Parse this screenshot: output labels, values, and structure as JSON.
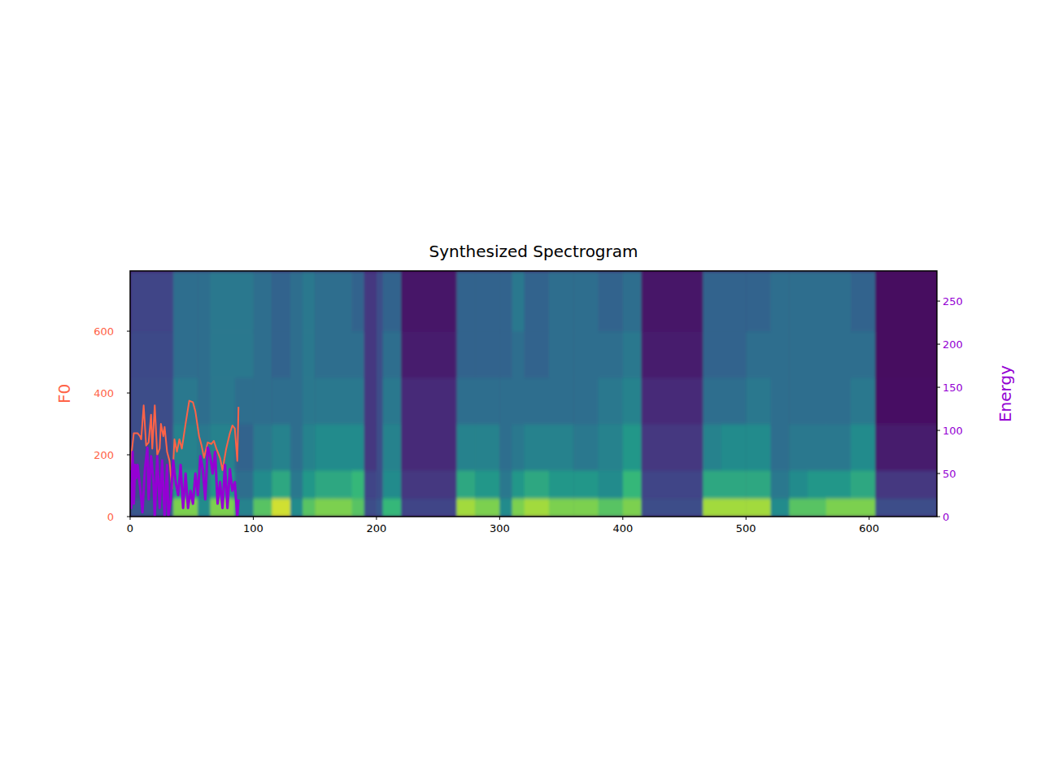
{
  "chart_data": {
    "type": "line",
    "title": "Synthesized Spectrogram",
    "ylabel": "F0",
    "y2label": "Energy",
    "xlim": [
      0,
      655
    ],
    "xticks": [
      0,
      100,
      200,
      300,
      400,
      500,
      600
    ],
    "ylim": [
      0,
      795
    ],
    "yticks": [
      0,
      200,
      400,
      600
    ],
    "y2lim": [
      0,
      285
    ],
    "y2ticks": [
      0,
      50,
      100,
      150,
      200,
      250
    ],
    "series": [
      {
        "color": "#ff6347",
        "axis": "y",
        "x": [
          0,
          1,
          3,
          6,
          8,
          9,
          11,
          13,
          15,
          17,
          18,
          20,
          22,
          24,
          25,
          27,
          28,
          30,
          32,
          34,
          36,
          38,
          40,
          42,
          45,
          48,
          51,
          53,
          56,
          58,
          60,
          63,
          66,
          68,
          70,
          73,
          75,
          78,
          81,
          83,
          85,
          87,
          88
        ],
        "values": [
          150,
          200,
          270,
          270,
          260,
          250,
          360,
          230,
          240,
          330,
          220,
          360,
          200,
          220,
          300,
          260,
          290,
          210,
          180,
          90,
          250,
          210,
          250,
          220,
          300,
          375,
          370,
          340,
          260,
          230,
          190,
          240,
          235,
          245,
          220,
          190,
          150,
          220,
          270,
          295,
          285,
          180,
          355
        ]
      },
      {
        "color": "#9400d3",
        "axis": "y2",
        "x": [
          0,
          1,
          2,
          3,
          4,
          5,
          6,
          8,
          10,
          12,
          14,
          15,
          17,
          19,
          20,
          22,
          24,
          26,
          28,
          30,
          31,
          33,
          35,
          37,
          39,
          41,
          43,
          45,
          47,
          49,
          51,
          53,
          55,
          57,
          59,
          61,
          63,
          65,
          67,
          69,
          71,
          73,
          75,
          77,
          79,
          81,
          83,
          85,
          87,
          88
        ],
        "values": [
          40,
          10,
          75,
          15,
          60,
          45,
          60,
          35,
          5,
          55,
          80,
          20,
          70,
          40,
          0,
          70,
          10,
          65,
          0,
          60,
          0,
          20,
          65,
          40,
          25,
          60,
          10,
          50,
          10,
          30,
          15,
          50,
          25,
          70,
          55,
          20,
          80,
          70,
          50,
          75,
          15,
          40,
          10,
          60,
          10,
          55,
          30,
          40,
          0,
          20
        ]
      }
    ],
    "spectrogram": {
      "x_edges": [
        0,
        35,
        55,
        65,
        85,
        100,
        115,
        130,
        140,
        150,
        165,
        180,
        190,
        200,
        205,
        220,
        265,
        280,
        300,
        310,
        320,
        340,
        360,
        380,
        400,
        415,
        465,
        480,
        500,
        520,
        535,
        550,
        565,
        585,
        605,
        655
      ],
      "y_edges": [
        0,
        60,
        150,
        300,
        450,
        600,
        795
      ],
      "cells": [
        [
          0.35,
          0.3,
          0.3,
          0.3,
          0.28,
          0.25
        ],
        [
          0.85,
          0.65,
          0.55,
          0.5,
          0.45,
          0.45
        ],
        [
          0.6,
          0.5,
          0.5,
          0.45,
          0.45,
          0.45
        ],
        [
          0.85,
          0.65,
          0.55,
          0.5,
          0.5,
          0.5
        ],
        [
          0.55,
          0.45,
          0.4,
          0.45,
          0.5,
          0.5
        ],
        [
          0.8,
          0.6,
          0.5,
          0.45,
          0.45,
          0.45
        ],
        [
          0.95,
          0.7,
          0.55,
          0.45,
          0.4,
          0.4
        ],
        [
          0.6,
          0.5,
          0.45,
          0.45,
          0.45,
          0.45
        ],
        [
          0.8,
          0.65,
          0.55,
          0.5,
          0.5,
          0.5
        ],
        [
          0.85,
          0.7,
          0.6,
          0.5,
          0.45,
          0.45
        ],
        [
          0.85,
          0.7,
          0.6,
          0.5,
          0.45,
          0.45
        ],
        [
          0.8,
          0.75,
          0.6,
          0.5,
          0.45,
          0.4
        ],
        [
          0.3,
          0.25,
          0.2,
          0.2,
          0.2,
          0.2
        ],
        [
          0.35,
          0.3,
          0.3,
          0.3,
          0.3,
          0.3
        ],
        [
          0.75,
          0.6,
          0.55,
          0.5,
          0.45,
          0.4
        ],
        [
          0.25,
          0.2,
          0.15,
          0.15,
          0.1,
          0.08
        ],
        [
          0.9,
          0.7,
          0.55,
          0.45,
          0.4,
          0.4
        ],
        [
          0.85,
          0.65,
          0.55,
          0.45,
          0.4,
          0.4
        ],
        [
          0.6,
          0.5,
          0.45,
          0.45,
          0.4,
          0.4
        ],
        [
          0.85,
          0.65,
          0.5,
          0.45,
          0.45,
          0.5
        ],
        [
          0.9,
          0.7,
          0.55,
          0.45,
          0.4,
          0.4
        ],
        [
          0.85,
          0.65,
          0.55,
          0.45,
          0.45,
          0.45
        ],
        [
          0.85,
          0.65,
          0.5,
          0.45,
          0.45,
          0.45
        ],
        [
          0.8,
          0.6,
          0.55,
          0.5,
          0.45,
          0.4
        ],
        [
          0.85,
          0.75,
          0.65,
          0.55,
          0.5,
          0.45
        ],
        [
          0.3,
          0.25,
          0.2,
          0.15,
          0.1,
          0.08
        ],
        [
          0.9,
          0.7,
          0.55,
          0.45,
          0.4,
          0.4
        ],
        [
          0.9,
          0.7,
          0.6,
          0.45,
          0.4,
          0.4
        ],
        [
          0.9,
          0.7,
          0.6,
          0.5,
          0.45,
          0.4
        ],
        [
          0.6,
          0.5,
          0.45,
          0.45,
          0.45,
          0.45
        ],
        [
          0.8,
          0.6,
          0.5,
          0.45,
          0.45,
          0.45
        ],
        [
          0.8,
          0.65,
          0.5,
          0.45,
          0.45,
          0.45
        ],
        [
          0.85,
          0.65,
          0.5,
          0.45,
          0.45,
          0.45
        ],
        [
          0.85,
          0.7,
          0.6,
          0.5,
          0.45,
          0.4
        ],
        [
          0.3,
          0.2,
          0.1,
          0.06,
          0.05,
          0.05
        ]
      ]
    }
  }
}
